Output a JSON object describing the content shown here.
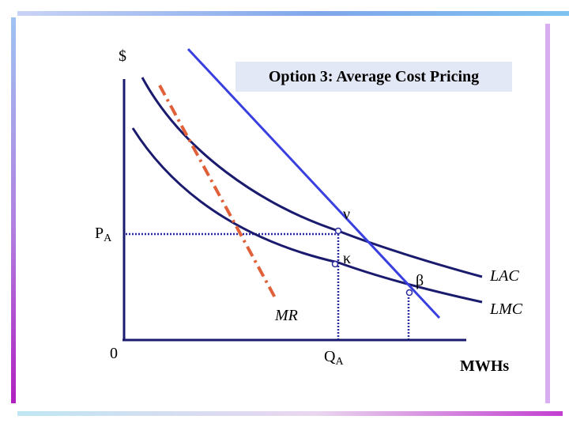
{
  "title": "Option 3: Average Cost Pricing",
  "labels": {
    "y_axis": "$",
    "origin": "0",
    "price_P": "P",
    "price_sub": "A",
    "quantity_Q": "Q",
    "quantity_sub": "A",
    "x_axis": "MWHs",
    "point_nu": "ν",
    "point_kappa": "κ",
    "point_beta": "β",
    "curve_mr": "MR",
    "curve_lac": "LAC",
    "curve_lmc": "LMC"
  },
  "colors": {
    "demand": "#3a3fe0",
    "mr": "#e0603a",
    "cost_curves": "#1a1a6e",
    "axes": "#1a1a6e",
    "guides": "#2a2aa0",
    "title_box": "#e3e8f6"
  }
}
